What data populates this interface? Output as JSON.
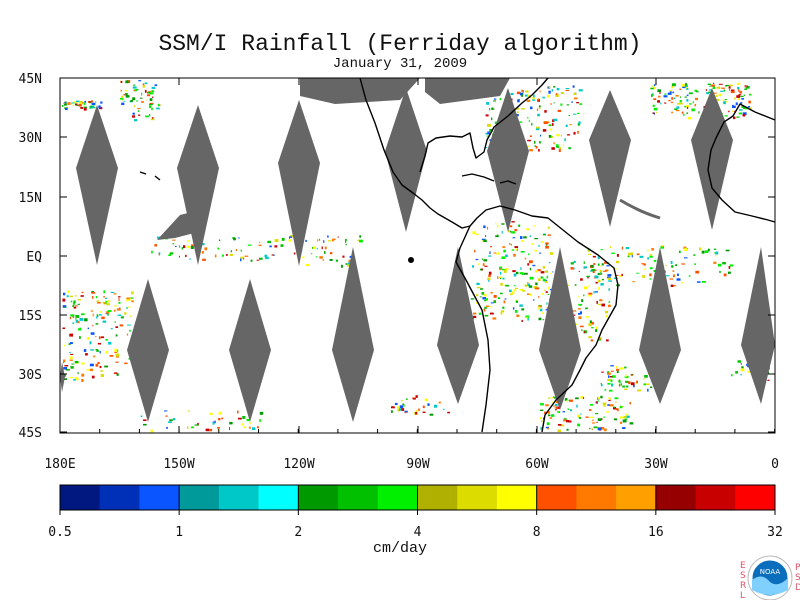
{
  "title": "SSM/I Rainfall (Ferriday algorithm)",
  "subtitle": "January 31, 2009",
  "map": {
    "lat_labels": [
      "45N",
      "30N",
      "15N",
      "EQ",
      "15S",
      "30S",
      "45S"
    ],
    "lon_labels": [
      "180E",
      "150W",
      "120W",
      "90W",
      "60W",
      "30W",
      "0"
    ],
    "missing_color": "#666666",
    "coast_color": "#000000"
  },
  "colorbar": {
    "colors": [
      "#001880",
      "#0030b8",
      "#0a55ff",
      "#009a9a",
      "#00c8c8",
      "#00ffff",
      "#009a00",
      "#00c000",
      "#00f000",
      "#b0b000",
      "#dcdc00",
      "#ffff00",
      "#ff5000",
      "#ff7800",
      "#ffa000",
      "#960000",
      "#c80000",
      "#ff0000"
    ],
    "labels": [
      "0.5",
      "1",
      "2",
      "4",
      "8",
      "16",
      "32"
    ],
    "unit": "cm/day"
  },
  "logo": {
    "left_letters": "ESRL",
    "right_letters": "PSD",
    "badge": "NOAA"
  }
}
